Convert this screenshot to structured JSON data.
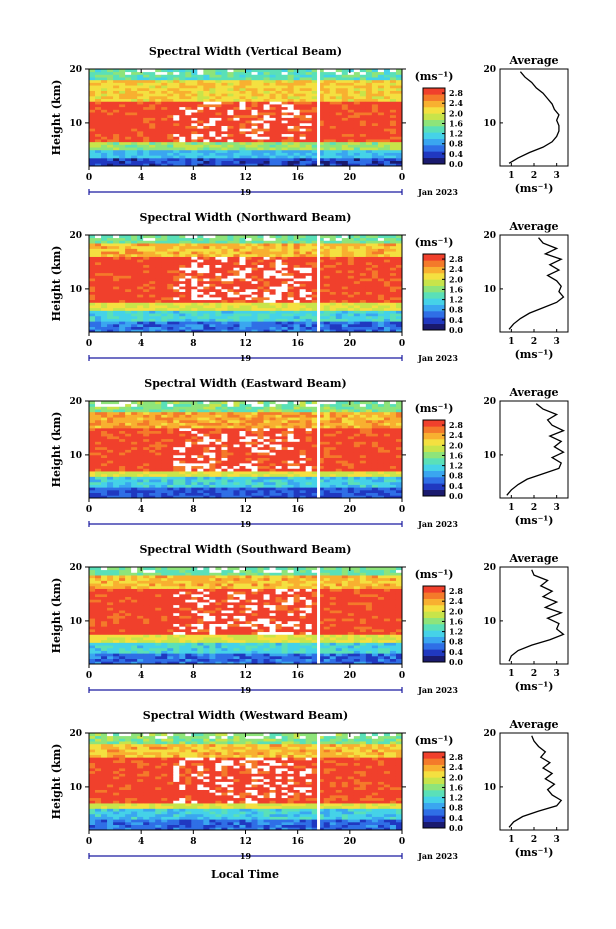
{
  "figure": {
    "x_axis_label": "Local Time",
    "colors": {
      "colormap": [
        "#1a1a6e",
        "#2038c0",
        "#2f6fe6",
        "#3aa6f0",
        "#45d2e8",
        "#5ae0b8",
        "#8ee47a",
        "#c8e44a",
        "#f4e040",
        "#f8b030",
        "#f47a2a",
        "#f0402c"
      ],
      "missing": "#ffffff",
      "axis": "#000000",
      "date_marker": "#1a1aa0"
    }
  },
  "chart_data": [
    {
      "type": "heatmap",
      "title": "Spectral Width (Vertical Beam)",
      "ylabel": "Height (km)",
      "xlim": [
        0,
        24
      ],
      "ylim": [
        2,
        20
      ],
      "x_ticks": [
        "0",
        "4",
        "8",
        "12",
        "16",
        "20",
        "0"
      ],
      "y_ticks": [
        "10",
        "20"
      ],
      "date_marker": "19",
      "date_label": "Jan 2023",
      "colorbar": {
        "unit": "(ms⁻¹)",
        "ticks": [
          "0.0",
          "0.4",
          "0.8",
          "1.2",
          "1.6",
          "2.0",
          "2.4",
          "2.8"
        ],
        "range": [
          0,
          3
        ]
      },
      "gap_at_hour": 17.6,
      "layers": [
        {
          "z_min": 2,
          "z_max": 3.5,
          "value": 0.4
        },
        {
          "z_min": 3.5,
          "z_max": 5,
          "value": 1.0
        },
        {
          "z_min": 5,
          "z_max": 6.5,
          "value": 1.7
        },
        {
          "z_min": 6.5,
          "z_max": 14,
          "value": 2.9
        },
        {
          "z_min": 14,
          "z_max": 18,
          "value": 2.2
        },
        {
          "z_min": 18,
          "z_max": 20,
          "value": 1.4
        }
      ],
      "average_profile": {
        "title": "Average",
        "xlabel": "(ms⁻¹)",
        "x_ticks": [
          "1",
          "2",
          "3"
        ],
        "xlim": [
          0.5,
          3.5
        ],
        "y_ticks": [
          "10",
          "20"
        ],
        "ylim": [
          2,
          20
        ],
        "height_km": [
          2.5,
          3.5,
          4.5,
          5.5,
          6.5,
          7.5,
          8.5,
          9.5,
          10.5,
          11.5,
          12.5,
          13.5,
          14.5,
          15.5,
          16.5,
          17.5,
          18.5,
          19.5
        ],
        "width": [
          0.9,
          1.3,
          1.8,
          2.4,
          2.8,
          3.0,
          3.1,
          3.1,
          3.0,
          3.1,
          2.9,
          2.8,
          2.6,
          2.4,
          2.1,
          1.9,
          1.6,
          1.4
        ]
      }
    },
    {
      "type": "heatmap",
      "title": "Spectral Width (Northward Beam)",
      "ylabel": "Height (km)",
      "xlim": [
        0,
        24
      ],
      "ylim": [
        2,
        20
      ],
      "x_ticks": [
        "0",
        "4",
        "8",
        "12",
        "16",
        "20",
        "0"
      ],
      "y_ticks": [
        "10",
        "20"
      ],
      "date_marker": "19",
      "date_label": "Jan 2023",
      "colorbar": {
        "unit": "(ms⁻¹)",
        "ticks": [
          "0.0",
          "0.4",
          "0.8",
          "1.2",
          "1.6",
          "2.0",
          "2.4",
          "2.8"
        ],
        "range": [
          0,
          3
        ]
      },
      "gap_at_hour": 17.6,
      "layers": [
        {
          "z_min": 2,
          "z_max": 4,
          "value": 0.6
        },
        {
          "z_min": 4,
          "z_max": 6,
          "value": 1.2
        },
        {
          "z_min": 6,
          "z_max": 7.5,
          "value": 2.0
        },
        {
          "z_min": 7.5,
          "z_max": 16,
          "value": 2.9
        },
        {
          "z_min": 16,
          "z_max": 18.5,
          "value": 2.3
        },
        {
          "z_min": 18.5,
          "z_max": 20,
          "value": 1.5
        }
      ],
      "average_profile": {
        "title": "Average",
        "xlabel": "(ms⁻¹)",
        "x_ticks": [
          "1",
          "2",
          "3"
        ],
        "xlim": [
          0.5,
          3.5
        ],
        "y_ticks": [
          "10",
          "20"
        ],
        "ylim": [
          2,
          20
        ],
        "height_km": [
          2.5,
          3.5,
          4.5,
          5.5,
          6.5,
          7.5,
          8.5,
          9.5,
          10.5,
          11.5,
          12.5,
          13.5,
          14.5,
          15.5,
          16.5,
          17.5,
          18.5,
          19.5
        ],
        "width": [
          0.9,
          1.1,
          1.4,
          1.8,
          2.4,
          3.0,
          3.3,
          3.1,
          3.2,
          3.0,
          2.6,
          3.1,
          2.7,
          3.2,
          2.5,
          3.0,
          2.4,
          2.2
        ]
      }
    },
    {
      "type": "heatmap",
      "title": "Spectral Width (Eastward Beam)",
      "ylabel": "Height (km)",
      "xlim": [
        0,
        24
      ],
      "ylim": [
        2,
        20
      ],
      "x_ticks": [
        "0",
        "4",
        "8",
        "12",
        "16",
        "20",
        "0"
      ],
      "y_ticks": [
        "10",
        "20"
      ],
      "date_marker": "19",
      "date_label": "Jan 2023",
      "colorbar": {
        "unit": "(ms⁻¹)",
        "ticks": [
          "0.0",
          "0.4",
          "0.8",
          "1.2",
          "1.6",
          "2.0",
          "2.4",
          "2.8"
        ],
        "range": [
          0,
          3
        ]
      },
      "gap_at_hour": 17.6,
      "layers": [
        {
          "z_min": 2,
          "z_max": 4,
          "value": 0.5
        },
        {
          "z_min": 4,
          "z_max": 6,
          "value": 1.1
        },
        {
          "z_min": 6,
          "z_max": 7,
          "value": 2.0
        },
        {
          "z_min": 7,
          "z_max": 15,
          "value": 2.9
        },
        {
          "z_min": 15,
          "z_max": 18,
          "value": 2.4
        },
        {
          "z_min": 18,
          "z_max": 20,
          "value": 1.6
        }
      ],
      "average_profile": {
        "title": "Average",
        "xlabel": "(ms⁻¹)",
        "x_ticks": [
          "1",
          "2",
          "3"
        ],
        "xlim": [
          0.5,
          3.5
        ],
        "y_ticks": [
          "10",
          "20"
        ],
        "ylim": [
          2,
          20
        ],
        "height_km": [
          2.5,
          3.5,
          4.5,
          5.5,
          6.5,
          7.5,
          8.5,
          9.5,
          10.5,
          11.5,
          12.5,
          13.5,
          14.5,
          15.5,
          16.5,
          17.5,
          18.5,
          19.5
        ],
        "width": [
          0.8,
          1.0,
          1.3,
          1.7,
          2.4,
          3.1,
          3.2,
          2.8,
          3.3,
          2.9,
          3.2,
          2.7,
          3.3,
          2.8,
          2.6,
          3.0,
          2.4,
          2.1
        ]
      }
    },
    {
      "type": "heatmap",
      "title": "Spectral Width (Southward Beam)",
      "ylabel": "Height (km)",
      "xlim": [
        0,
        24
      ],
      "ylim": [
        2,
        20
      ],
      "x_ticks": [
        "0",
        "4",
        "8",
        "12",
        "16",
        "20",
        "0"
      ],
      "y_ticks": [
        "10",
        "20"
      ],
      "date_marker": "19",
      "date_label": "Jan 2023",
      "colorbar": {
        "unit": "(ms⁻¹)",
        "ticks": [
          "0.0",
          "0.4",
          "0.8",
          "1.2",
          "1.6",
          "2.0",
          "2.4",
          "2.8"
        ],
        "range": [
          0,
          3
        ]
      },
      "gap_at_hour": 17.6,
      "layers": [
        {
          "z_min": 2,
          "z_max": 4,
          "value": 0.6
        },
        {
          "z_min": 4,
          "z_max": 6,
          "value": 1.2
        },
        {
          "z_min": 6,
          "z_max": 7.5,
          "value": 2.0
        },
        {
          "z_min": 7.5,
          "z_max": 16,
          "value": 2.9
        },
        {
          "z_min": 16,
          "z_max": 18.5,
          "value": 2.3
        },
        {
          "z_min": 18.5,
          "z_max": 20,
          "value": 1.5
        }
      ],
      "average_profile": {
        "title": "Average",
        "xlabel": "(ms⁻¹)",
        "x_ticks": [
          "1",
          "2",
          "3"
        ],
        "xlim": [
          0.5,
          3.5
        ],
        "y_ticks": [
          "10",
          "20"
        ],
        "ylim": [
          2,
          20
        ],
        "height_km": [
          2.5,
          3.5,
          4.5,
          5.5,
          6.5,
          7.5,
          8.5,
          9.5,
          10.5,
          11.5,
          12.5,
          13.5,
          14.5,
          15.5,
          16.5,
          17.5,
          18.5,
          19.5
        ],
        "width": [
          0.9,
          1.0,
          1.3,
          1.9,
          2.7,
          3.3,
          3.0,
          3.1,
          2.6,
          3.2,
          2.5,
          3.0,
          2.4,
          2.8,
          2.3,
          2.6,
          2.0,
          1.9
        ]
      }
    },
    {
      "type": "heatmap",
      "title": "Spectral Width (Westward Beam)",
      "ylabel": "Height (km)",
      "xlim": [
        0,
        24
      ],
      "ylim": [
        2,
        20
      ],
      "x_ticks": [
        "0",
        "4",
        "8",
        "12",
        "16",
        "20",
        "0"
      ],
      "y_ticks": [
        "10",
        "20"
      ],
      "date_marker": "19",
      "date_label": "Jan 2023",
      "colorbar": {
        "unit": "(ms⁻¹)",
        "ticks": [
          "0.0",
          "0.4",
          "0.8",
          "1.2",
          "1.6",
          "2.0",
          "2.4",
          "2.8"
        ],
        "range": [
          0,
          3
        ]
      },
      "gap_at_hour": 17.6,
      "layers": [
        {
          "z_min": 2,
          "z_max": 4,
          "value": 0.6
        },
        {
          "z_min": 4,
          "z_max": 6,
          "value": 1.1
        },
        {
          "z_min": 6,
          "z_max": 7,
          "value": 2.0
        },
        {
          "z_min": 7,
          "z_max": 15.5,
          "value": 2.9
        },
        {
          "z_min": 15.5,
          "z_max": 18,
          "value": 2.3
        },
        {
          "z_min": 18,
          "z_max": 20,
          "value": 1.6
        }
      ],
      "average_profile": {
        "title": "Average",
        "xlabel": "(ms⁻¹)",
        "x_ticks": [
          "1",
          "2",
          "3"
        ],
        "xlim": [
          0.5,
          3.5
        ],
        "y_ticks": [
          "10",
          "20"
        ],
        "ylim": [
          2,
          20
        ],
        "height_km": [
          2.5,
          3.5,
          4.5,
          5.5,
          6.5,
          7.5,
          8.5,
          9.5,
          10.5,
          11.5,
          12.5,
          13.5,
          14.5,
          15.5,
          16.5,
          17.5,
          18.5,
          19.5
        ],
        "width": [
          0.9,
          1.1,
          1.5,
          2.2,
          3.0,
          3.2,
          2.8,
          2.6,
          2.9,
          2.5,
          2.8,
          2.4,
          2.7,
          2.3,
          2.5,
          2.2,
          2.0,
          1.9
        ]
      }
    }
  ]
}
